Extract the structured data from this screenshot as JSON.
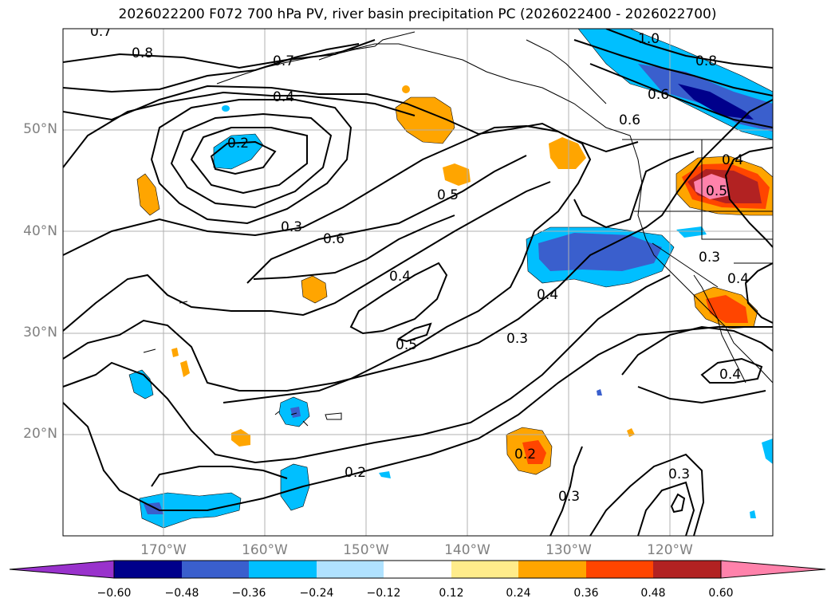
{
  "title": "2026022200 F072 700 hPa PV, river basin precipitation PC (2026022400 - 2026022700)",
  "lat_labels": [
    "50°N",
    "40°N",
    "30°N",
    "20°N"
  ],
  "lon_labels": [
    "170°W",
    "160°W",
    "150°W",
    "140°W",
    "130°W",
    "120°W"
  ],
  "colorbar": {
    "ticks": [
      "−0.60",
      "−0.48",
      "−0.36",
      "−0.24",
      "−0.12",
      "0.12",
      "0.24",
      "0.36",
      "0.48",
      "0.60"
    ],
    "colors": [
      "#9932cc",
      "#00008b",
      "#3a5fcd",
      "#00bfff",
      "#b0e2ff",
      "#ffffff",
      "#ffec8b",
      "#ffa500",
      "#ff4500",
      "#b22222",
      "#ff82ab"
    ]
  },
  "pv_contour_labels": [
    "0.7",
    "0.8",
    "0.7",
    "0.4",
    "0.2",
    "0.3",
    "0.6",
    "0.5",
    "0.4",
    "0.5",
    "0.4",
    "0.3",
    "0.2",
    "0.2",
    "0.3",
    "1.0",
    "0.8",
    "0.6",
    "0.6",
    "0.4",
    "0.5",
    "0.3",
    "0.4",
    "0.4",
    "0.3"
  ],
  "colors": {
    "land_outline": "#000000",
    "grid": "#b0b0b0",
    "axis_label": "#808080"
  }
}
